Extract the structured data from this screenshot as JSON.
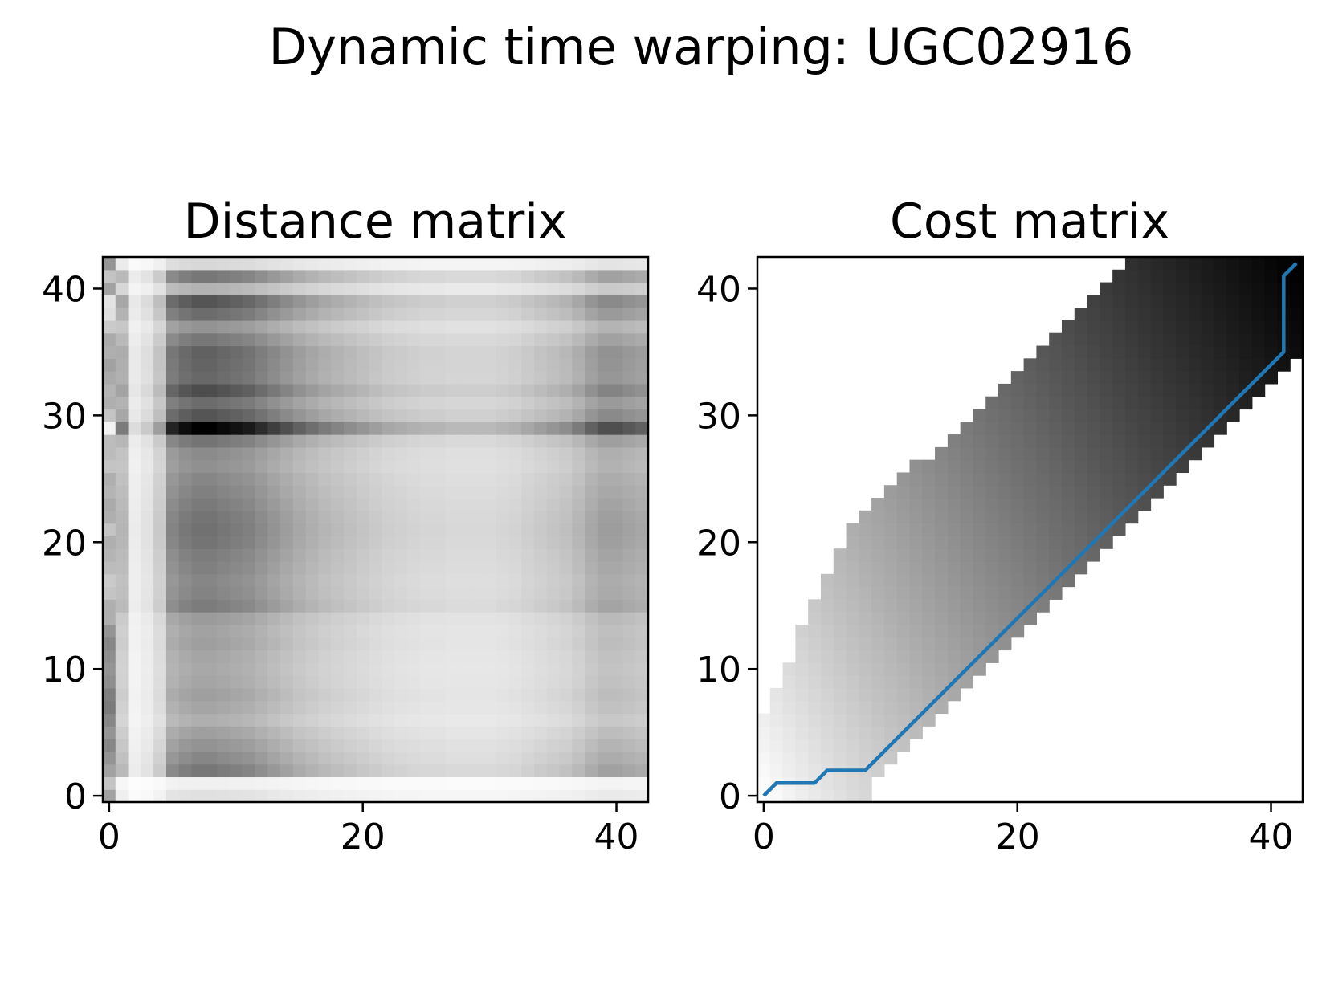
{
  "figure": {
    "suptitle": "Dynamic time warping: UGC02916",
    "colormap": "gray_r",
    "path_color": "#1f77b4"
  },
  "chart_data": [
    {
      "type": "heatmap",
      "title": "Distance matrix",
      "xlabel": "",
      "ylabel": "",
      "matrix_size": [
        43,
        43
      ],
      "origin": "lower",
      "xlim": [
        -0.5,
        42.5
      ],
      "ylim": [
        -0.5,
        42.5
      ],
      "xticks": [
        0,
        20,
        40
      ],
      "yticks": [
        0,
        10,
        20,
        30,
        40
      ],
      "grid": false,
      "col_profile": [
        0.55,
        0.3,
        0.08,
        0.12,
        0.22,
        0.5,
        0.55,
        0.58,
        0.58,
        0.56,
        0.54,
        0.52,
        0.48,
        0.44,
        0.4,
        0.36,
        0.33,
        0.3,
        0.28,
        0.26,
        0.24,
        0.22,
        0.2,
        0.19,
        0.18,
        0.17,
        0.17,
        0.16,
        0.16,
        0.16,
        0.16,
        0.17,
        0.18,
        0.2,
        0.22,
        0.24,
        0.26,
        0.3,
        0.36,
        0.4,
        0.4,
        0.38,
        0.36
      ],
      "row_profile": [
        0.2,
        0.1,
        0.88,
        0.78,
        0.7,
        0.62,
        0.52,
        0.58,
        0.62,
        0.58,
        0.56,
        0.58,
        0.62,
        0.6,
        0.65,
        0.85,
        0.8,
        0.78,
        0.82,
        0.85,
        0.9,
        0.92,
        0.9,
        0.86,
        0.82,
        0.78,
        0.72,
        0.75,
        0.9,
        1.65,
        1.1,
        0.95,
        1.15,
        0.98,
        1.0,
        1.02,
        0.88,
        0.7,
        0.95,
        1.1,
        0.5,
        0.88,
        0.25
      ],
      "first_col": [
        0.35,
        0.22,
        0.35,
        0.4,
        0.45,
        0.4,
        0.45,
        0.5,
        0.48,
        0.42,
        0.4,
        0.42,
        0.45,
        0.4,
        0.3,
        0.3,
        0.22,
        0.2,
        0.25,
        0.28,
        0.3,
        0.22,
        0.3,
        0.32,
        0.28,
        0.3,
        0.22,
        0.25,
        0.25,
        0.05,
        0.22,
        0.3,
        0.28,
        0.32,
        0.35,
        0.3,
        0.32,
        0.2,
        0.12,
        0.1,
        0.35,
        0.22,
        0.4
      ]
    },
    {
      "type": "heatmap",
      "title": "Cost matrix",
      "xlabel": "",
      "ylabel": "",
      "matrix_size": [
        43,
        43
      ],
      "origin": "lower",
      "xlim": [
        -0.5,
        42.5
      ],
      "ylim": [
        -0.5,
        42.5
      ],
      "xticks": [
        0,
        20,
        40
      ],
      "yticks": [
        0,
        10,
        20,
        30,
        40
      ],
      "grid": false,
      "band_note": "window-constrained cost band; cells outside band are empty",
      "warping_path": [
        [
          0,
          0
        ],
        [
          1,
          1
        ],
        [
          2,
          1
        ],
        [
          3,
          1
        ],
        [
          4,
          1
        ],
        [
          5,
          2
        ],
        [
          6,
          2
        ],
        [
          7,
          2
        ],
        [
          8,
          2
        ],
        [
          9,
          3
        ],
        [
          10,
          4
        ],
        [
          11,
          5
        ],
        [
          12,
          6
        ],
        [
          13,
          7
        ],
        [
          14,
          8
        ],
        [
          15,
          9
        ],
        [
          16,
          10
        ],
        [
          17,
          11
        ],
        [
          18,
          12
        ],
        [
          19,
          13
        ],
        [
          20,
          14
        ],
        [
          21,
          15
        ],
        [
          22,
          16
        ],
        [
          23,
          17
        ],
        [
          24,
          18
        ],
        [
          25,
          19
        ],
        [
          26,
          20
        ],
        [
          27,
          21
        ],
        [
          28,
          22
        ],
        [
          29,
          23
        ],
        [
          30,
          24
        ],
        [
          31,
          25
        ],
        [
          32,
          26
        ],
        [
          33,
          27
        ],
        [
          34,
          28
        ],
        [
          35,
          29
        ],
        [
          36,
          30
        ],
        [
          37,
          31
        ],
        [
          38,
          32
        ],
        [
          39,
          33
        ],
        [
          40,
          34
        ],
        [
          41,
          35
        ],
        [
          41,
          36
        ],
        [
          41,
          37
        ],
        [
          41,
          38
        ],
        [
          41,
          39
        ],
        [
          41,
          40
        ],
        [
          41,
          41
        ],
        [
          42,
          42
        ]
      ]
    }
  ]
}
